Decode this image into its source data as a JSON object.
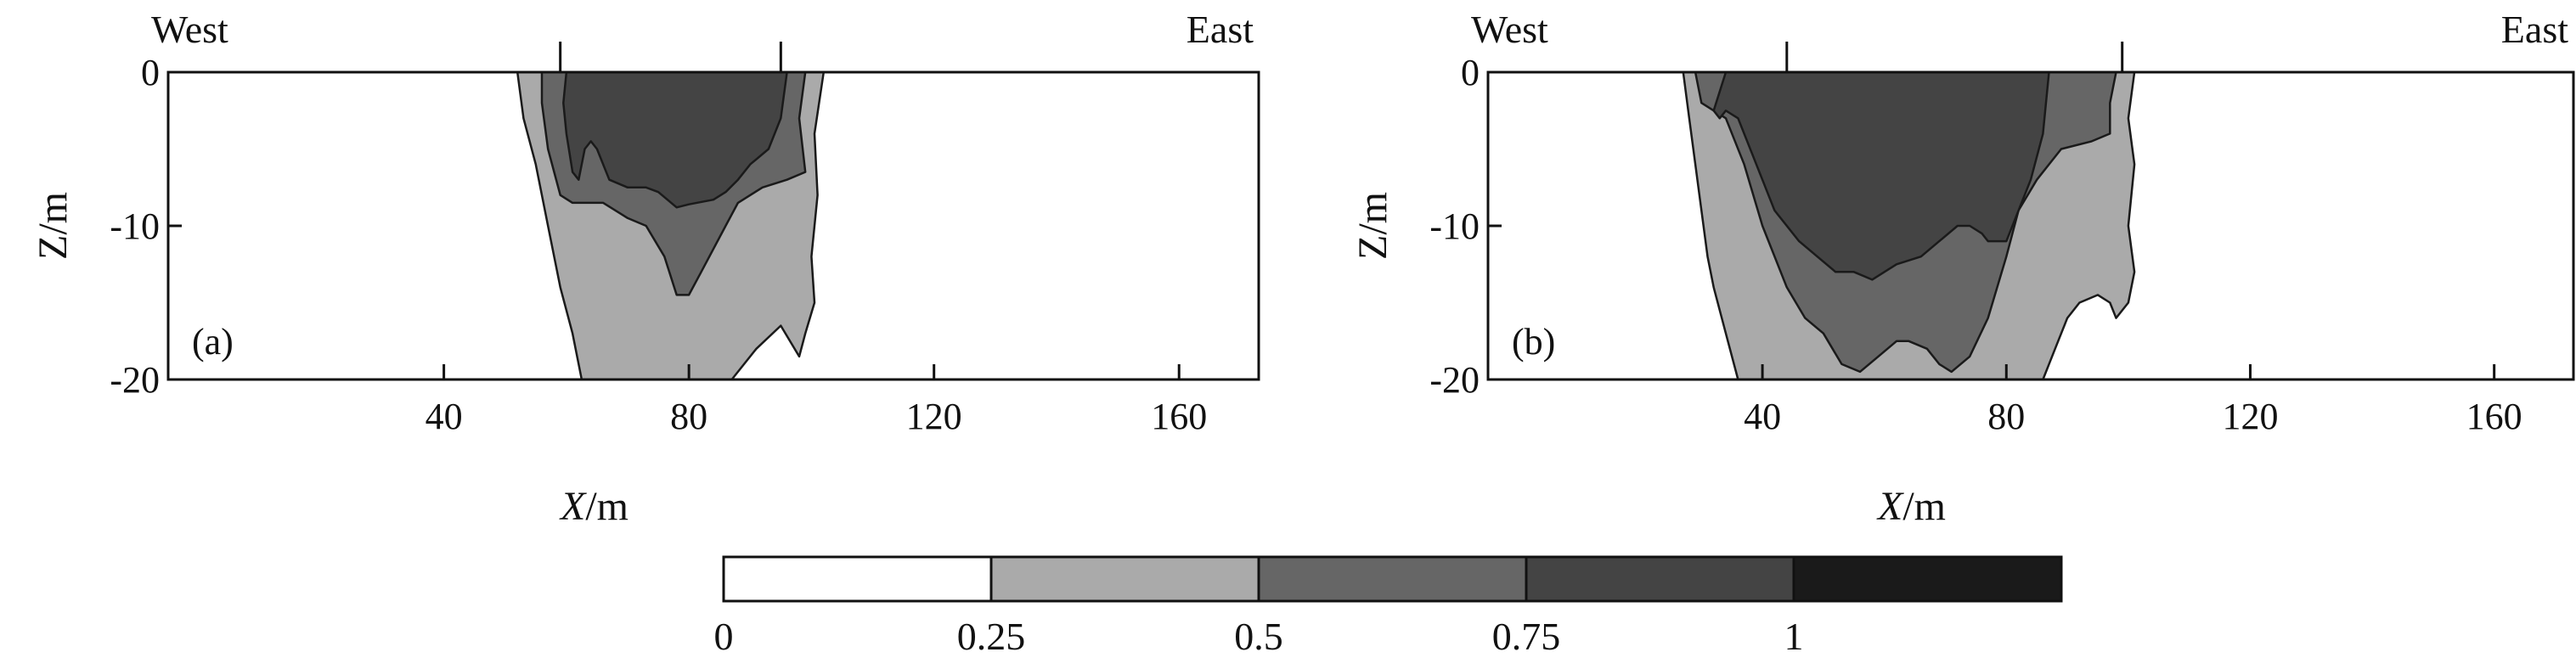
{
  "chart_data": [
    {
      "type": "contour",
      "panel_label": "(a)",
      "corner_labels": {
        "left": "West",
        "right": "East"
      },
      "xlabel": {
        "italic": "X",
        "rest": "/m"
      },
      "ylabel": "Z/m",
      "xlim": [
        -5,
        173
      ],
      "ylim": [
        -20,
        0
      ],
      "xticks": [
        40,
        80,
        120,
        160
      ],
      "yticks": [
        0,
        -10,
        -20
      ],
      "surface_marks_x": [
        59,
        95
      ],
      "levels": [
        0.25,
        0.5,
        0.75
      ],
      "regions": [
        {
          "level": 0.25,
          "color": "#aaaaaa",
          "points": [
            [
              52,
              0
            ],
            [
              102,
              0
            ],
            [
              100.5,
              -4
            ],
            [
              101,
              -8
            ],
            [
              100,
              -12
            ],
            [
              100.5,
              -15
            ],
            [
              99,
              -17
            ],
            [
              98,
              -18.5
            ],
            [
              95,
              -16.5
            ],
            [
              91,
              -18
            ],
            [
              87,
              -20
            ],
            [
              62.5,
              -20
            ],
            [
              61,
              -17
            ],
            [
              59,
              -14
            ],
            [
              57,
              -10
            ],
            [
              55,
              -6
            ],
            [
              53,
              -3
            ]
          ]
        },
        {
          "level": 0.5,
          "color": "#666666",
          "points": [
            [
              56,
              0
            ],
            [
              99,
              0
            ],
            [
              98,
              -3
            ],
            [
              99,
              -6.5
            ],
            [
              96,
              -7
            ],
            [
              92,
              -7.5
            ],
            [
              88,
              -8.5
            ],
            [
              86,
              -10
            ],
            [
              82,
              -13
            ],
            [
              80,
              -14.5
            ],
            [
              78,
              -14.5
            ],
            [
              76,
              -12
            ],
            [
              73,
              -10
            ],
            [
              70,
              -9.5
            ],
            [
              66,
              -8.5
            ],
            [
              61,
              -8.5
            ],
            [
              59,
              -8
            ],
            [
              57,
              -5
            ],
            [
              56,
              -2
            ]
          ]
        },
        {
          "level": 0.75,
          "color": "#444444",
          "points": [
            [
              60,
              0
            ],
            [
              96,
              0
            ],
            [
              95,
              -3
            ],
            [
              93,
              -5
            ],
            [
              90,
              -6
            ],
            [
              88,
              -7
            ],
            [
              86,
              -7.8
            ],
            [
              84,
              -8.3
            ],
            [
              80,
              -8.6
            ],
            [
              78,
              -8.8
            ],
            [
              75,
              -7.8
            ],
            [
              73,
              -7.5
            ],
            [
              70,
              -7.5
            ],
            [
              67,
              -7
            ],
            [
              65,
              -5
            ],
            [
              64,
              -4.5
            ],
            [
              63,
              -5
            ],
            [
              62,
              -7
            ],
            [
              61,
              -6.5
            ],
            [
              60,
              -4
            ],
            [
              59.5,
              -2
            ]
          ]
        }
      ]
    },
    {
      "type": "contour",
      "panel_label": "(b)",
      "corner_labels": {
        "left": "West",
        "right": "East"
      },
      "xlabel": {
        "italic": "X",
        "rest": "/m"
      },
      "ylabel": "Z/m",
      "xlim": [
        -5,
        173
      ],
      "ylim": [
        -20,
        0
      ],
      "xticks": [
        40,
        80,
        120,
        160
      ],
      "yticks": [
        0,
        -10,
        -20
      ],
      "surface_marks_x": [
        44,
        99
      ],
      "levels": [
        0.25,
        0.5,
        0.75
      ],
      "regions": [
        {
          "level": 0.25,
          "color": "#aaaaaa",
          "points": [
            [
              27,
              0
            ],
            [
              101,
              0
            ],
            [
              100,
              -3
            ],
            [
              101,
              -6
            ],
            [
              100,
              -10
            ],
            [
              101,
              -13
            ],
            [
              100,
              -15
            ],
            [
              98,
              -16
            ],
            [
              97,
              -15
            ],
            [
              95,
              -14.5
            ],
            [
              92,
              -15
            ],
            [
              90,
              -16
            ],
            [
              88,
              -18
            ],
            [
              86,
              -20
            ],
            [
              36,
              -20
            ],
            [
              34,
              -17
            ],
            [
              32,
              -14
            ],
            [
              31,
              -12
            ],
            [
              30,
              -9
            ],
            [
              29,
              -6
            ],
            [
              28,
              -3
            ]
          ]
        },
        {
          "level": 0.5,
          "color": "#666666",
          "points": [
            [
              29,
              0
            ],
            [
              98,
              0
            ],
            [
              97,
              -2
            ],
            [
              97,
              -4
            ],
            [
              94,
              -4.5
            ],
            [
              89,
              -5
            ],
            [
              85,
              -7
            ],
            [
              82,
              -9
            ],
            [
              80,
              -12
            ],
            [
              77,
              -16
            ],
            [
              74,
              -18.5
            ],
            [
              71,
              -19.5
            ],
            [
              69,
              -19
            ],
            [
              67,
              -18
            ],
            [
              64,
              -17.5
            ],
            [
              62,
              -17.5
            ],
            [
              59,
              -18.5
            ],
            [
              56,
              -19.5
            ],
            [
              53,
              -19
            ],
            [
              50,
              -17
            ],
            [
              47,
              -16
            ],
            [
              44,
              -14
            ],
            [
              40,
              -10
            ],
            [
              37,
              -6
            ],
            [
              34,
              -3
            ],
            [
              30,
              -2
            ]
          ]
        },
        {
          "level": 0.75,
          "color": "#444444",
          "points": [
            [
              34,
              0
            ],
            [
              87,
              0
            ],
            [
              86,
              -4
            ],
            [
              84,
              -7
            ],
            [
              80,
              -11
            ],
            [
              77,
              -11
            ],
            [
              76,
              -10.5
            ],
            [
              74,
              -10
            ],
            [
              72,
              -10
            ],
            [
              69,
              -11
            ],
            [
              66,
              -12
            ],
            [
              62,
              -12.5
            ],
            [
              60,
              -13
            ],
            [
              58,
              -13.5
            ],
            [
              55,
              -13
            ],
            [
              52,
              -13
            ],
            [
              49,
              -12
            ],
            [
              46,
              -11
            ],
            [
              42,
              -9
            ],
            [
              39,
              -6
            ],
            [
              36,
              -3
            ],
            [
              34,
              -2.5
            ],
            [
              33,
              -3
            ],
            [
              32,
              -2.5
            ]
          ]
        }
      ]
    }
  ],
  "colorbar": {
    "tick_labels": [
      "0",
      "0.25",
      "0.5",
      "0.75",
      "1"
    ],
    "segment_colors": [
      "#ffffff",
      "#aaaaaa",
      "#666666",
      "#444444",
      "#1a1a1a"
    ]
  }
}
